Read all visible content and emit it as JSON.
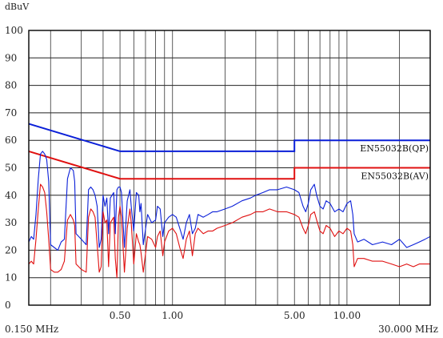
{
  "chart_data": {
    "type": "line",
    "ylabel": "dBuV",
    "ylim": [
      0,
      100
    ],
    "xlim_mhz": [
      0.15,
      30
    ],
    "x_scale": "log",
    "y_ticks": [
      "0",
      "10",
      "20",
      "30",
      "40",
      "50",
      "60",
      "70",
      "80",
      "90",
      "100"
    ],
    "x_tick_labels": [
      {
        "value": 0.5,
        "label": "0.50"
      },
      {
        "value": 1,
        "label": "1.00"
      },
      {
        "value": 5,
        "label": "5.00"
      },
      {
        "value": 10,
        "label": "10.00"
      }
    ],
    "x_end_labels": {
      "left": "0.150 MHz",
      "right": "30.000 MHz"
    },
    "grid": true,
    "limits": [
      {
        "name": "EN55032B(QP)",
        "color": "#0a1fd8",
        "points": [
          [
            0.15,
            66
          ],
          [
            0.5,
            56
          ],
          [
            5,
            56
          ],
          [
            5,
            60
          ],
          [
            30,
            60
          ]
        ]
      },
      {
        "name": "EN55032B(AV)",
        "color": "#e01010",
        "points": [
          [
            0.15,
            56
          ],
          [
            0.5,
            46
          ],
          [
            5,
            46
          ],
          [
            5,
            50
          ],
          [
            30,
            50
          ]
        ]
      }
    ],
    "series": [
      {
        "color": "#0a1fd8",
        "points": [
          [
            0.15,
            23
          ],
          [
            0.155,
            25
          ],
          [
            0.16,
            24
          ],
          [
            0.165,
            33
          ],
          [
            0.17,
            46
          ],
          [
            0.175,
            55
          ],
          [
            0.18,
            56
          ],
          [
            0.185,
            55
          ],
          [
            0.19,
            53
          ],
          [
            0.195,
            45
          ],
          [
            0.2,
            22
          ],
          [
            0.21,
            21
          ],
          [
            0.22,
            20
          ],
          [
            0.23,
            23
          ],
          [
            0.24,
            24
          ],
          [
            0.25,
            46
          ],
          [
            0.26,
            50
          ],
          [
            0.27,
            49
          ],
          [
            0.275,
            45
          ],
          [
            0.28,
            26
          ],
          [
            0.3,
            24
          ],
          [
            0.32,
            22
          ],
          [
            0.33,
            42
          ],
          [
            0.34,
            43
          ],
          [
            0.35,
            42
          ],
          [
            0.36,
            40
          ],
          [
            0.37,
            36
          ],
          [
            0.38,
            21
          ],
          [
            0.39,
            24
          ],
          [
            0.4,
            40
          ],
          [
            0.41,
            36
          ],
          [
            0.42,
            39
          ],
          [
            0.43,
            26
          ],
          [
            0.44,
            39
          ],
          [
            0.45,
            40
          ],
          [
            0.46,
            41
          ],
          [
            0.47,
            26
          ],
          [
            0.48,
            42
          ],
          [
            0.49,
            43
          ],
          [
            0.5,
            43
          ],
          [
            0.51,
            41
          ],
          [
            0.53,
            21
          ],
          [
            0.55,
            38
          ],
          [
            0.57,
            42
          ],
          [
            0.58,
            36
          ],
          [
            0.6,
            27
          ],
          [
            0.62,
            41
          ],
          [
            0.64,
            40
          ],
          [
            0.65,
            34
          ],
          [
            0.66,
            37
          ],
          [
            0.68,
            22
          ],
          [
            0.72,
            33
          ],
          [
            0.76,
            30
          ],
          [
            0.8,
            31
          ],
          [
            0.82,
            36
          ],
          [
            0.85,
            35
          ],
          [
            0.88,
            25
          ],
          [
            0.9,
            30
          ],
          [
            0.95,
            32
          ],
          [
            1.0,
            33
          ],
          [
            1.05,
            32
          ],
          [
            1.1,
            28
          ],
          [
            1.15,
            24
          ],
          [
            1.2,
            30
          ],
          [
            1.25,
            33
          ],
          [
            1.3,
            26
          ],
          [
            1.35,
            28
          ],
          [
            1.4,
            33
          ],
          [
            1.5,
            32
          ],
          [
            1.6,
            33
          ],
          [
            1.7,
            34
          ],
          [
            1.8,
            34
          ],
          [
            2.0,
            35
          ],
          [
            2.2,
            36
          ],
          [
            2.5,
            38
          ],
          [
            2.8,
            39
          ],
          [
            3.0,
            40
          ],
          [
            3.3,
            41
          ],
          [
            3.6,
            42
          ],
          [
            4.0,
            42
          ],
          [
            4.5,
            43
          ],
          [
            5.0,
            42
          ],
          [
            5.3,
            41
          ],
          [
            5.6,
            36
          ],
          [
            5.8,
            34
          ],
          [
            6.0,
            37
          ],
          [
            6.2,
            42
          ],
          [
            6.5,
            44
          ],
          [
            6.7,
            40
          ],
          [
            7.0,
            36
          ],
          [
            7.3,
            35
          ],
          [
            7.6,
            38
          ],
          [
            8.0,
            37
          ],
          [
            8.5,
            34
          ],
          [
            9.0,
            35
          ],
          [
            9.5,
            34
          ],
          [
            10.0,
            37
          ],
          [
            10.5,
            38
          ],
          [
            10.8,
            33
          ],
          [
            11.0,
            26
          ],
          [
            11.5,
            23
          ],
          [
            12.5,
            24
          ],
          [
            14,
            22
          ],
          [
            16,
            23
          ],
          [
            18,
            22
          ],
          [
            20,
            24
          ],
          [
            22,
            21
          ],
          [
            24,
            22
          ],
          [
            26,
            23
          ],
          [
            28,
            24
          ],
          [
            30,
            25
          ]
        ]
      },
      {
        "color": "#e01010",
        "points": [
          [
            0.15,
            15
          ],
          [
            0.155,
            16
          ],
          [
            0.16,
            15
          ],
          [
            0.165,
            24
          ],
          [
            0.17,
            35
          ],
          [
            0.175,
            44
          ],
          [
            0.18,
            43
          ],
          [
            0.185,
            41
          ],
          [
            0.19,
            34
          ],
          [
            0.195,
            24
          ],
          [
            0.2,
            13
          ],
          [
            0.21,
            12
          ],
          [
            0.22,
            12
          ],
          [
            0.23,
            13
          ],
          [
            0.24,
            16
          ],
          [
            0.25,
            31
          ],
          [
            0.26,
            33
          ],
          [
            0.27,
            31
          ],
          [
            0.275,
            29
          ],
          [
            0.28,
            15
          ],
          [
            0.3,
            13
          ],
          [
            0.32,
            12
          ],
          [
            0.33,
            32
          ],
          [
            0.34,
            35
          ],
          [
            0.35,
            34
          ],
          [
            0.36,
            32
          ],
          [
            0.37,
            22
          ],
          [
            0.38,
            12
          ],
          [
            0.39,
            14
          ],
          [
            0.4,
            34
          ],
          [
            0.41,
            30
          ],
          [
            0.42,
            31
          ],
          [
            0.43,
            14
          ],
          [
            0.44,
            30
          ],
          [
            0.45,
            31
          ],
          [
            0.46,
            32
          ],
          [
            0.47,
            17
          ],
          [
            0.48,
            10
          ],
          [
            0.49,
            32
          ],
          [
            0.5,
            36
          ],
          [
            0.51,
            32
          ],
          [
            0.53,
            12
          ],
          [
            0.55,
            28
          ],
          [
            0.57,
            35
          ],
          [
            0.58,
            30
          ],
          [
            0.6,
            15
          ],
          [
            0.62,
            26
          ],
          [
            0.64,
            23
          ],
          [
            0.65,
            22
          ],
          [
            0.66,
            19
          ],
          [
            0.68,
            12
          ],
          [
            0.72,
            25
          ],
          [
            0.76,
            24
          ],
          [
            0.8,
            21
          ],
          [
            0.82,
            25
          ],
          [
            0.85,
            27
          ],
          [
            0.88,
            18
          ],
          [
            0.9,
            23
          ],
          [
            0.95,
            27
          ],
          [
            1.0,
            28
          ],
          [
            1.05,
            26
          ],
          [
            1.1,
            21
          ],
          [
            1.15,
            17
          ],
          [
            1.2,
            24
          ],
          [
            1.25,
            27
          ],
          [
            1.3,
            18
          ],
          [
            1.35,
            26
          ],
          [
            1.4,
            28
          ],
          [
            1.5,
            26
          ],
          [
            1.6,
            27
          ],
          [
            1.7,
            27
          ],
          [
            1.8,
            28
          ],
          [
            2.0,
            29
          ],
          [
            2.2,
            30
          ],
          [
            2.5,
            32
          ],
          [
            2.8,
            33
          ],
          [
            3.0,
            34
          ],
          [
            3.3,
            34
          ],
          [
            3.6,
            35
          ],
          [
            4.0,
            34
          ],
          [
            4.5,
            34
          ],
          [
            5.0,
            33
          ],
          [
            5.3,
            32
          ],
          [
            5.6,
            28
          ],
          [
            5.8,
            26
          ],
          [
            6.0,
            29
          ],
          [
            6.2,
            33
          ],
          [
            6.5,
            34
          ],
          [
            6.7,
            31
          ],
          [
            7.0,
            27
          ],
          [
            7.3,
            26
          ],
          [
            7.6,
            29
          ],
          [
            8.0,
            28
          ],
          [
            8.5,
            25
          ],
          [
            9.0,
            27
          ],
          [
            9.5,
            26
          ],
          [
            10.0,
            28
          ],
          [
            10.5,
            27
          ],
          [
            10.8,
            22
          ],
          [
            11.0,
            14
          ],
          [
            11.5,
            17
          ],
          [
            12.5,
            17
          ],
          [
            14,
            16
          ],
          [
            16,
            16
          ],
          [
            18,
            15
          ],
          [
            20,
            14
          ],
          [
            22,
            15
          ],
          [
            24,
            14
          ],
          [
            26,
            15
          ],
          [
            28,
            15
          ],
          [
            30,
            15
          ]
        ]
      }
    ]
  }
}
